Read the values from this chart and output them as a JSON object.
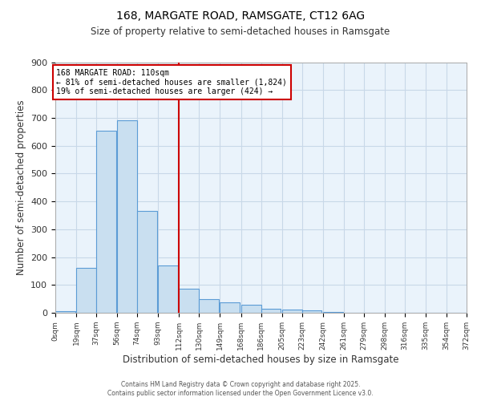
{
  "title1": "168, MARGATE ROAD, RAMSGATE, CT12 6AG",
  "title2": "Size of property relative to semi-detached houses in Ramsgate",
  "xlabel": "Distribution of semi-detached houses by size in Ramsgate",
  "ylabel": "Number of semi-detached properties",
  "bar_left_edges": [
    0,
    19,
    37,
    56,
    74,
    93,
    112,
    130,
    149,
    168,
    186,
    205,
    223,
    242,
    261,
    279,
    298,
    316,
    335,
    354
  ],
  "bar_heights": [
    5,
    160,
    655,
    690,
    365,
    170,
    87,
    50,
    38,
    30,
    14,
    12,
    9,
    4,
    0,
    0,
    0,
    0,
    0,
    0
  ],
  "bin_width": 18,
  "bar_color": "#c9dff0",
  "bar_edge_color": "#5b9bd5",
  "vline_x": 112,
  "vline_color": "#cc0000",
  "annotation_title": "168 MARGATE ROAD: 110sqm",
  "annotation_line1": "← 81% of semi-detached houses are smaller (1,824)",
  "annotation_line2": "19% of semi-detached houses are larger (424) →",
  "annotation_box_color": "#cc0000",
  "annotation_text_color": "#000000",
  "annotation_bg_color": "#ffffff",
  "xtick_labels": [
    "0sqm",
    "19sqm",
    "37sqm",
    "56sqm",
    "74sqm",
    "93sqm",
    "112sqm",
    "130sqm",
    "149sqm",
    "168sqm",
    "186sqm",
    "205sqm",
    "223sqm",
    "242sqm",
    "261sqm",
    "279sqm",
    "298sqm",
    "316sqm",
    "335sqm",
    "354sqm",
    "372sqm"
  ],
  "xtick_positions": [
    0,
    19,
    37,
    56,
    74,
    93,
    112,
    130,
    149,
    168,
    186,
    205,
    223,
    242,
    261,
    279,
    298,
    316,
    335,
    354,
    372
  ],
  "ylim": [
    0,
    900
  ],
  "yticks": [
    0,
    100,
    200,
    300,
    400,
    500,
    600,
    700,
    800,
    900
  ],
  "grid_color": "#c8d8e8",
  "bg_color": "#eaf3fb",
  "footer1": "Contains HM Land Registry data © Crown copyright and database right 2025.",
  "footer2": "Contains public sector information licensed under the Open Government Licence v3.0."
}
